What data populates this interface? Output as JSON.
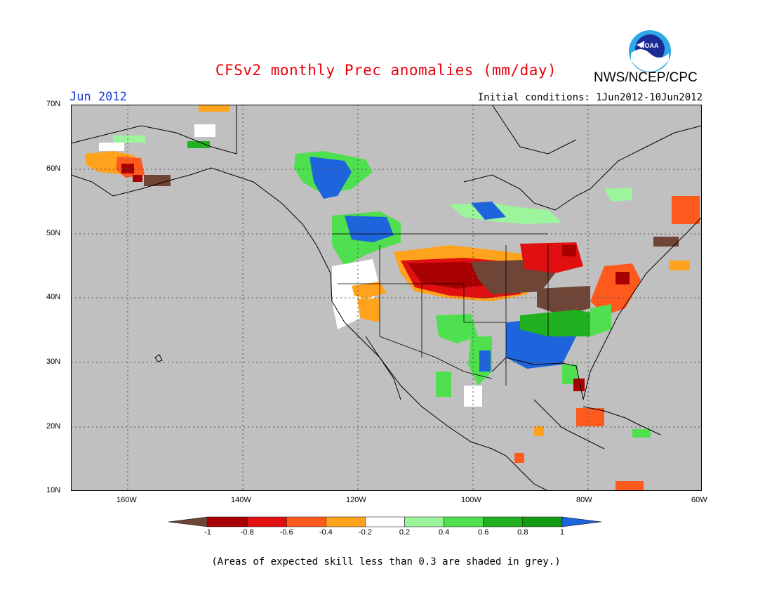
{
  "title": "CFSv2 monthly Prec anomalies (mm/day)",
  "organization": "NWS/NCEP/CPC",
  "logo_text": "NOAA",
  "month": "Jun 2012",
  "initial_conditions": "Initial conditions: 1Jun2012-10Jun2012",
  "footer": "(Areas of expected skill less than 0.3 are shaded in grey.)",
  "axes": {
    "lat_labels": [
      "70N",
      "60N",
      "50N",
      "40N",
      "30N",
      "20N",
      "10N"
    ],
    "lon_labels": [
      "160W",
      "140W",
      "120W",
      "100W",
      "80W",
      "60W"
    ]
  },
  "colorbar": {
    "labels": [
      "-1",
      "-0.8",
      "-0.6",
      "-0.4",
      "-0.2",
      "0.2",
      "0.4",
      "0.6",
      "0.8",
      "1"
    ],
    "colors": [
      "#6e4536",
      "#a80000",
      "#e01010",
      "#ff5a1e",
      "#ffa21c",
      "#ffffff",
      "#9cf49c",
      "#4ee04e",
      "#20b020",
      "#159a15",
      "#1e64dc"
    ]
  },
  "colors": {
    "skill_grey": "#c0c0c0",
    "title_red": "#e8000b",
    "month_blue": "#1a3ad6"
  }
}
